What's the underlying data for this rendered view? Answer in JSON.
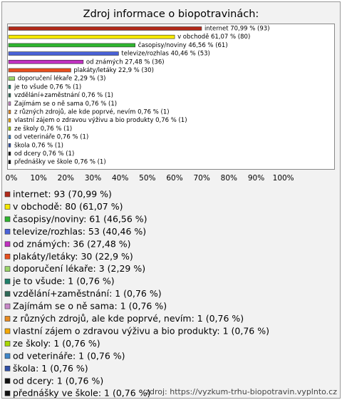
{
  "chart_data": {
    "type": "hbar",
    "title": "Zdroj informace o biopotravinách:",
    "categories": [
      "internet",
      "v obchodě",
      "časopisy/noviny",
      "televize/rozhlas",
      "od známých",
      "plakáty/letáky",
      "doporučení lékaře",
      "je to všude",
      "vzdělání+zaměstnání",
      "Zajímám se o ně sama",
      "z různých zdrojů, ale kde poprvé, nevím",
      "vlastní zájem o zdravou výživu a bio produkty",
      "ze školy",
      "od veterináře",
      "škola",
      "od dcery",
      "přednášky ve škole"
    ],
    "values": [
      70.99,
      61.07,
      46.56,
      40.46,
      27.48,
      22.9,
      2.29,
      0.76,
      0.76,
      0.76,
      0.76,
      0.76,
      0.76,
      0.76,
      0.76,
      0.76,
      0.76
    ],
    "value_labels": [
      "internet 70,99 % (93)",
      "v obchodě 61,07 % (80)",
      "časopisy/noviny 46,56 % (61)",
      "televize/rozhlas 40,46 % (53)",
      "od známých 27,48 % (36)",
      "plakáty/letáky 22,9 % (30)",
      "doporučení lékaře 2,29 % (3)",
      "je to všude 0,76 % (1)",
      "vzdělání+zaměstnání 0,76 % (1)",
      "Zajímám se o ně sama 0,76 % (1)",
      "z různých zdrojů, ale kde poprvé, nevím 0,76 % (1)",
      "vlastní zájem o zdravou výživu a bio produkty 0,76 % (1)",
      "ze školy 0,76 % (1)",
      "od veterináře 0,76 % (1)",
      "škola 0,76 % (1)",
      "od dcery 0,76 % (1)",
      "přednášky ve škole 0,76 % (1)"
    ],
    "legend_labels": [
      "internet: 93 (70,99 %)",
      "v obchodě: 80 (61,07 %)",
      "časopisy/noviny: 61 (46,56 %)",
      "televize/rozhlas: 53 (40,46 %)",
      "od známých: 36 (27,48 %)",
      "plakáty/letáky: 30 (22,9 %)",
      "doporučení lékaře: 3 (2,29 %)",
      "je to všude: 1 (0,76 %)",
      "vzdělání+zaměstnání: 1 (0,76 %)",
      "Zajímám se o ně sama: 1 (0,76 %)",
      "z různých zdrojů, ale kde poprvé, nevím: 1 (0,76 %)",
      "vlastní zájem o zdravou výživu a bio produkty: 1 (0,76 %)",
      "ze školy: 1 (0,76 %)",
      "od veterináře: 1 (0,76 %)",
      "škola: 1 (0,76 %)",
      "od dcery: 1 (0,76 %)",
      "přednášky ve škole: 1 (0,76 %)"
    ],
    "colors": [
      "#b22a1a",
      "#f5e800",
      "#2fb52f",
      "#4a62d8",
      "#c030c0",
      "#e8501e",
      "#9ad468",
      "#1f7f6a",
      "#2f6a58",
      "#c888c8",
      "#e88a20",
      "#f5a800",
      "#a8d800",
      "#3f86c8",
      "#3050a8",
      "#111111",
      "#111111"
    ],
    "xlim": [
      0,
      120
    ],
    "xticks": [
      {
        "value": 0,
        "label": "0%"
      },
      {
        "value": 10,
        "label": "10%"
      },
      {
        "value": 20,
        "label": "20%"
      },
      {
        "value": 30,
        "label": "30%"
      },
      {
        "value": 40,
        "label": "40%"
      },
      {
        "value": 50,
        "label": "50%"
      },
      {
        "value": 60,
        "label": "60%"
      },
      {
        "value": 70,
        "label": "70%"
      },
      {
        "value": 80,
        "label": "80%"
      },
      {
        "value": 90,
        "label": "90%"
      },
      {
        "value": 100,
        "label": "100%"
      }
    ],
    "source": "zdroj: https://vyzkum-trhu-biopotravin.vyplnto.cz"
  }
}
